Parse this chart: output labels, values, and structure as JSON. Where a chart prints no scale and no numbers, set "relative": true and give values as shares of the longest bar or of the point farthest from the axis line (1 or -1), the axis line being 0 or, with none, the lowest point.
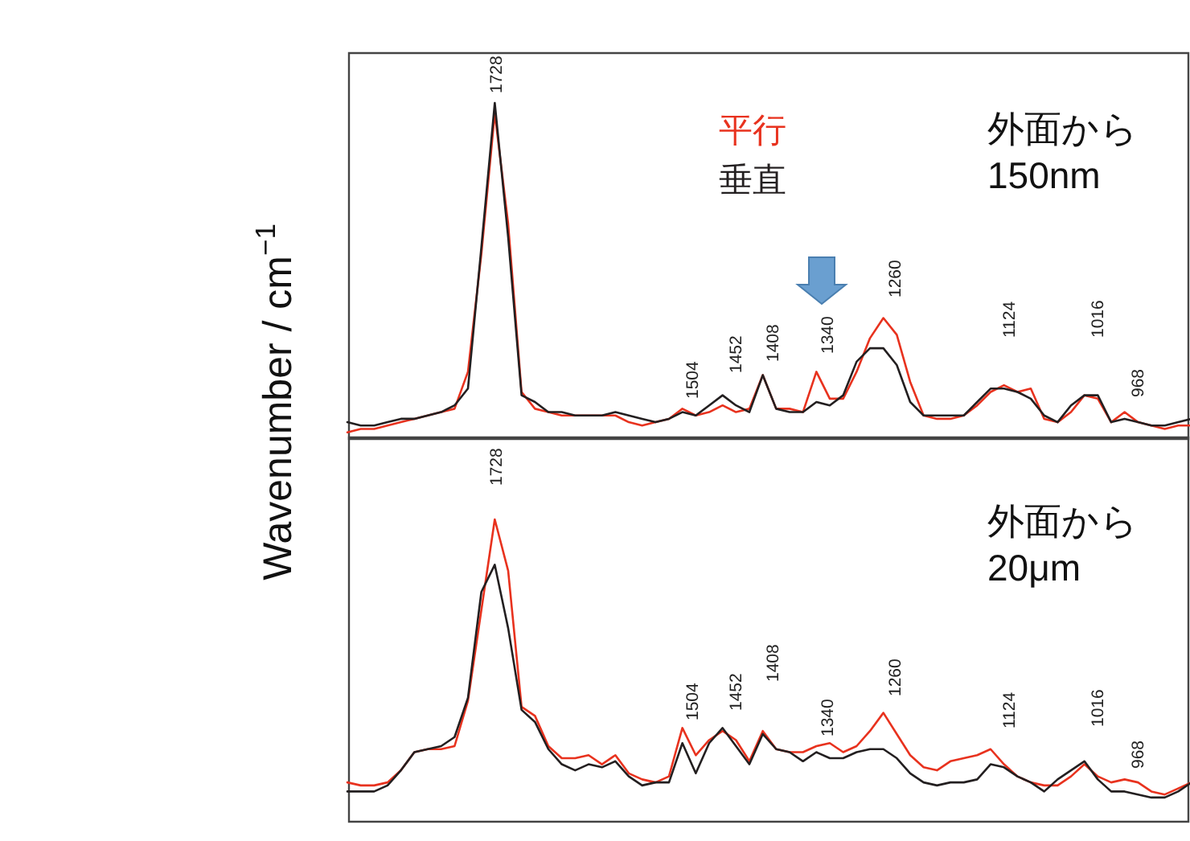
{
  "chart_data": [
    {
      "type": "line",
      "relative": true,
      "ylabel": "Wavenumber / cm$^{−1}$",
      "grid": false,
      "categories": [
        null,
        null,
        null,
        null,
        null,
        null,
        null,
        null,
        null,
        null,
        null,
        null,
        null,
        null,
        null,
        null,
        null,
        null,
        null,
        null,
        null,
        null,
        null,
        null,
        null,
        null,
        null,
        null,
        null,
        null,
        null,
        null,
        null,
        null,
        null,
        null,
        null,
        null,
        null,
        null,
        null,
        null,
        null,
        null,
        null,
        null,
        null,
        null,
        null,
        null,
        null,
        null,
        null,
        null,
        null,
        null,
        null,
        null,
        null,
        null,
        null,
        null,
        null,
        null
      ],
      "series": [
        {
          "name": "平行",
          "color": "#e8321e",
          "values": [
            0.02,
            0.03,
            0.03,
            0.04,
            0.05,
            0.06,
            0.07,
            0.08,
            0.09,
            0.2,
            0.55,
            0.97,
            0.64,
            0.14,
            0.09,
            0.08,
            0.07,
            0.07,
            0.07,
            0.07,
            0.07,
            0.05,
            0.04,
            0.05,
            0.06,
            0.09,
            0.07,
            0.08,
            0.1,
            0.08,
            0.09,
            0.19,
            0.09,
            0.09,
            0.08,
            0.2,
            0.12,
            0.12,
            0.2,
            0.3,
            0.36,
            0.31,
            0.17,
            0.07,
            0.06,
            0.06,
            0.07,
            0.1,
            0.14,
            0.16,
            0.14,
            0.15,
            0.06,
            0.05,
            0.08,
            0.13,
            0.12,
            0.05,
            0.08,
            0.05,
            0.04,
            0.03,
            0.04,
            0.04
          ]
        },
        {
          "name": "垂直",
          "color": "#231f20",
          "values": [
            0.05,
            0.04,
            0.04,
            0.05,
            0.06,
            0.06,
            0.07,
            0.08,
            0.1,
            0.15,
            0.57,
            1,
            0.6,
            0.13,
            0.11,
            0.08,
            0.08,
            0.07,
            0.07,
            0.07,
            0.08,
            0.07,
            0.06,
            0.05,
            0.06,
            0.08,
            0.07,
            0.1,
            0.13,
            0.1,
            0.08,
            0.19,
            0.09,
            0.08,
            0.08,
            0.11,
            0.1,
            0.13,
            0.23,
            0.27,
            0.27,
            0.22,
            0.11,
            0.07,
            0.07,
            0.07,
            0.07,
            0.11,
            0.15,
            0.15,
            0.14,
            0.12,
            0.07,
            0.05,
            0.1,
            0.13,
            0.13,
            0.05,
            0.06,
            0.05,
            0.04,
            0.04,
            0.05,
            0.06
          ]
        }
      ],
      "annotations": [
        "外面から\n150nm",
        "1728",
        "1504",
        "1452",
        "1408",
        "1340",
        "1260",
        "1124",
        "1016",
        "968"
      ]
    },
    {
      "type": "line",
      "relative": true,
      "grid": false,
      "categories": [
        null,
        null,
        null,
        null,
        null,
        null,
        null,
        null,
        null,
        null,
        null,
        null,
        null,
        null,
        null,
        null,
        null,
        null,
        null,
        null,
        null,
        null,
        null,
        null,
        null,
        null,
        null,
        null,
        null,
        null,
        null,
        null,
        null,
        null,
        null,
        null,
        null,
        null,
        null,
        null,
        null,
        null,
        null,
        null,
        null,
        null,
        null,
        null,
        null,
        null,
        null,
        null,
        null,
        null,
        null,
        null,
        null,
        null,
        null,
        null,
        null,
        null,
        null,
        null
      ],
      "series": [
        {
          "color": "#e8321e",
          "values": [
            0.13,
            0.12,
            0.12,
            0.13,
            0.17,
            0.23,
            0.24,
            0.24,
            0.25,
            0.4,
            0.7,
            1,
            0.83,
            0.38,
            0.35,
            0.25,
            0.21,
            0.21,
            0.22,
            0.19,
            0.22,
            0.16,
            0.14,
            0.13,
            0.15,
            0.31,
            0.22,
            0.27,
            0.3,
            0.27,
            0.2,
            0.3,
            0.24,
            0.23,
            0.23,
            0.25,
            0.26,
            0.23,
            0.25,
            0.3,
            0.36,
            0.29,
            0.22,
            0.18,
            0.17,
            0.2,
            0.21,
            0.22,
            0.24,
            0.19,
            0.15,
            0.13,
            0.12,
            0.12,
            0.15,
            0.19,
            0.15,
            0.13,
            0.14,
            0.13,
            0.1,
            0.09,
            0.11,
            0.13
          ]
        },
        {
          "color": "#231f20",
          "values": [
            0.1,
            0.1,
            0.1,
            0.12,
            0.17,
            0.23,
            0.24,
            0.25,
            0.28,
            0.41,
            0.76,
            0.85,
            0.64,
            0.37,
            0.33,
            0.24,
            0.19,
            0.17,
            0.19,
            0.18,
            0.2,
            0.15,
            0.12,
            0.13,
            0.13,
            0.26,
            0.16,
            0.26,
            0.31,
            0.25,
            0.19,
            0.29,
            0.24,
            0.23,
            0.2,
            0.23,
            0.21,
            0.21,
            0.23,
            0.24,
            0.24,
            0.21,
            0.16,
            0.13,
            0.12,
            0.13,
            0.13,
            0.14,
            0.19,
            0.18,
            0.15,
            0.13,
            0.1,
            0.14,
            0.17,
            0.2,
            0.14,
            0.1,
            0.1,
            0.09,
            0.08,
            0.08,
            0.1,
            0.13
          ]
        }
      ],
      "annotations": [
        "外面から\n20μm",
        "1728",
        "1504",
        "1452",
        "1408",
        "1340",
        "1260",
        "1124",
        "1016",
        "968"
      ]
    }
  ]
}
